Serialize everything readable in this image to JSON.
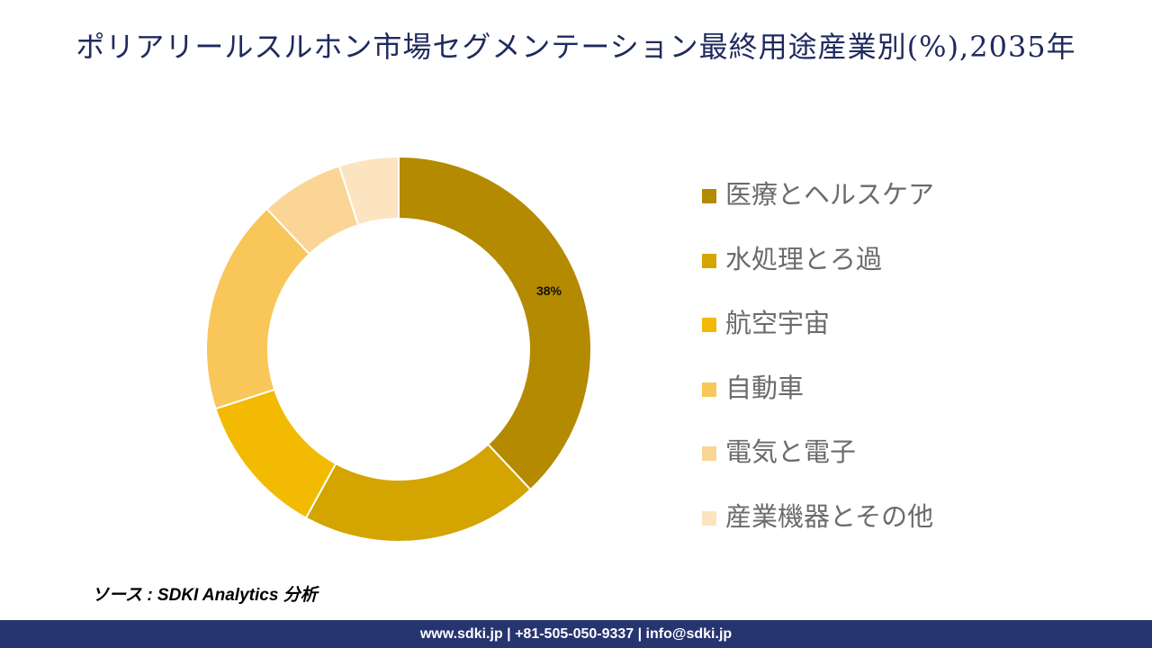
{
  "title": "ポリアリールスルホン市場セグメンテーション最終用途産業別(%),2035年",
  "chart_data": {
    "type": "pie",
    "variant": "donut",
    "categories": [
      "医療とヘルスケア",
      "水処理とろ過",
      "航空宇宙",
      "自動車",
      "電気と電子",
      "産業機器とその他"
    ],
    "values": [
      38,
      20,
      12,
      18,
      7,
      5
    ],
    "colors": [
      "#B38A00",
      "#D4A400",
      "#F2BA00",
      "#F8C659",
      "#FBD595",
      "#FCE4C0"
    ],
    "data_labels": [
      "38%",
      "",
      "",
      "",
      "",
      ""
    ],
    "legend_position": "right"
  },
  "source": "ソース : SDKI Analytics 分析",
  "footer": "www.sdki.jp | +81-505-050-9337 | info@sdki.jp"
}
